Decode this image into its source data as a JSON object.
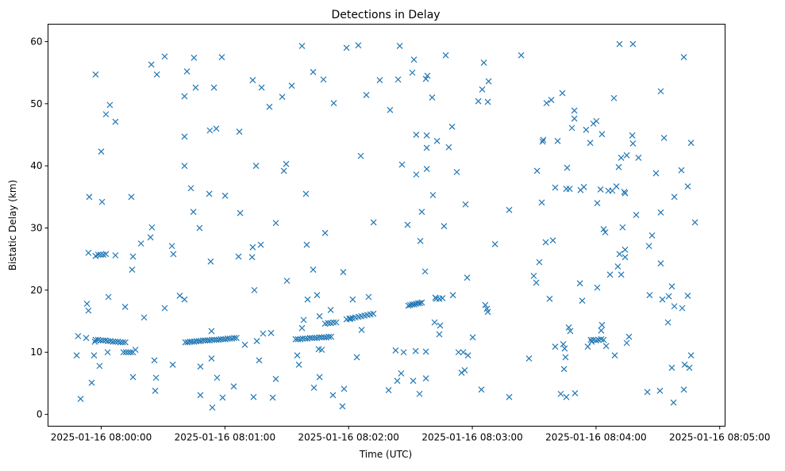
{
  "chart_data": {
    "type": "scatter",
    "title": "Detections in Delay",
    "xlabel": "Time (UTC)",
    "ylabel": "Bistatic Delay (km)",
    "x_units": "seconds since 2025-01-16 08:00:00",
    "xlim": [
      -25.8,
      302.6
    ],
    "ylim": [
      -1.9,
      62.8
    ],
    "x_ticks": [
      {
        "value": 0,
        "label": "2025-01-16 08:00:00"
      },
      {
        "value": 60,
        "label": "2025-01-16 08:01:00"
      },
      {
        "value": 120,
        "label": "2025-01-16 08:02:00"
      },
      {
        "value": 180,
        "label": "2025-01-16 08:03:00"
      },
      {
        "value": 240,
        "label": "2025-01-16 08:04:00"
      },
      {
        "value": 300,
        "label": "2025-01-16 08:05:00"
      }
    ],
    "y_ticks": [
      {
        "value": 0,
        "label": "0"
      },
      {
        "value": 10,
        "label": "10"
      },
      {
        "value": 20,
        "label": "20"
      },
      {
        "value": 30,
        "label": "30"
      },
      {
        "value": 40,
        "label": "40"
      },
      {
        "value": 50,
        "label": "50"
      },
      {
        "value": 60,
        "label": "60"
      }
    ],
    "grid": false,
    "marker": "x",
    "color": "#1f77b4",
    "points": [
      [
        -11.9,
        9.5
      ],
      [
        -10.0,
        2.5
      ],
      [
        -11.2,
        12.6
      ],
      [
        -7.3,
        12.3
      ],
      [
        -6.9,
        17.8
      ],
      [
        -6.2,
        16.7
      ],
      [
        -5.8,
        35
      ],
      [
        -6.2,
        26
      ],
      [
        -4.6,
        5.1
      ],
      [
        -3.5,
        9.5
      ],
      [
        -3.1,
        11.7
      ],
      [
        -2.7,
        54.7
      ],
      [
        -0.8,
        7.8
      ],
      [
        0,
        42.3
      ],
      [
        0.4,
        34.2
      ],
      [
        2.3,
        48.3
      ],
      [
        3.1,
        10
      ],
      [
        3.5,
        18.9
      ],
      [
        4.2,
        49.8
      ],
      [
        6.9,
        47.1
      ],
      [
        6.9,
        25.6
      ],
      [
        -2.7,
        25.5
      ],
      [
        -1.5,
        25.7
      ],
      [
        -0.3,
        25.7
      ],
      [
        1.0,
        25.7
      ],
      [
        2.3,
        25.8
      ],
      [
        -2.7,
        12.0
      ],
      [
        -1.5,
        12.0
      ],
      [
        -0.3,
        11.9
      ],
      [
        0.9,
        11.9
      ],
      [
        2.1,
        11.9
      ],
      [
        3.3,
        11.8
      ],
      [
        4.5,
        11.8
      ],
      [
        5.7,
        11.7
      ],
      [
        6.9,
        11.7
      ],
      [
        8.1,
        11.7
      ],
      [
        9.3,
        11.6
      ],
      [
        10.5,
        11.6
      ],
      [
        11.7,
        11.6
      ],
      [
        10.8,
        10.0
      ],
      [
        12.0,
        10.0
      ],
      [
        13.2,
        10.0
      ],
      [
        14.3,
        10.0
      ],
      [
        15.4,
        10.0
      ],
      [
        11.6,
        17.3
      ],
      [
        14.6,
        35
      ],
      [
        15.4,
        25.4
      ],
      [
        15.0,
        23.3
      ],
      [
        15.4,
        6
      ],
      [
        16.6,
        10.4
      ],
      [
        20.8,
        15.6
      ],
      [
        19.3,
        27.5
      ],
      [
        23.9,
        28.5
      ],
      [
        24.6,
        30.1
      ],
      [
        24.3,
        56.3
      ],
      [
        27.0,
        54.7
      ],
      [
        25.8,
        8.7
      ],
      [
        26.2,
        3.8
      ],
      [
        26.6,
        5.9
      ],
      [
        30.8,
        57.6
      ],
      [
        30.8,
        17.1
      ],
      [
        34.3,
        27.1
      ],
      [
        35.0,
        25.8
      ],
      [
        34.7,
        8
      ],
      [
        38.1,
        19.1
      ],
      [
        40.4,
        18.5
      ],
      [
        40.4,
        40
      ],
      [
        40.4,
        44.7
      ],
      [
        40.4,
        51.2
      ],
      [
        41.6,
        55.2
      ],
      [
        43.5,
        36.4
      ],
      [
        44.7,
        32.6
      ],
      [
        45.0,
        57.4
      ],
      [
        45.8,
        52.6
      ],
      [
        47.7,
        30
      ],
      [
        48.1,
        7.7
      ],
      [
        48.1,
        3.1
      ],
      [
        52.4,
        35.5
      ],
      [
        52.7,
        45.7
      ],
      [
        53.1,
        24.6
      ],
      [
        53.5,
        9
      ],
      [
        53.9,
        1.1
      ],
      [
        54.7,
        52.6
      ],
      [
        55.8,
        46
      ],
      [
        56.2,
        5.9
      ],
      [
        58.5,
        57.5
      ],
      [
        58.9,
        2.7
      ],
      [
        60.1,
        35.2
      ],
      [
        64.3,
        4.5
      ],
      [
        67.0,
        45.5
      ],
      [
        66.6,
        25.4
      ],
      [
        67.4,
        32.4
      ],
      [
        69.7,
        11.2
      ],
      [
        40.8,
        11.6
      ],
      [
        41.9,
        11.6
      ],
      [
        43.0,
        11.7
      ],
      [
        44.0,
        11.7
      ],
      [
        45.1,
        11.7
      ],
      [
        46.2,
        11.8
      ],
      [
        47.3,
        11.8
      ],
      [
        48.3,
        11.8
      ],
      [
        49.4,
        11.9
      ],
      [
        50.5,
        11.9
      ],
      [
        51.6,
        11.9
      ],
      [
        52.6,
        11.9
      ],
      [
        53.7,
        12.0
      ],
      [
        54.8,
        12.0
      ],
      [
        55.9,
        12.0
      ],
      [
        57.0,
        12.0
      ],
      [
        58.0,
        12.1
      ],
      [
        59.1,
        12.1
      ],
      [
        60.2,
        12.1
      ],
      [
        61.3,
        12.2
      ],
      [
        62.3,
        12.2
      ],
      [
        63.4,
        12.2
      ],
      [
        64.5,
        12.3
      ],
      [
        65.6,
        12.3
      ],
      [
        53.5,
        13.4
      ],
      [
        73.5,
        26.9
      ],
      [
        73.5,
        53.8
      ],
      [
        74.3,
        20
      ],
      [
        75.1,
        40
      ],
      [
        73.2,
        25.3
      ],
      [
        73.9,
        2.8
      ],
      [
        75.5,
        11.8
      ],
      [
        76.6,
        8.7
      ],
      [
        77.8,
        52.6
      ],
      [
        77.4,
        27.3
      ],
      [
        78.5,
        13
      ],
      [
        81.6,
        49.5
      ],
      [
        83.2,
        2.7
      ],
      [
        82.4,
        13.1
      ],
      [
        84.7,
        5.7
      ],
      [
        84.7,
        30.8
      ],
      [
        87.8,
        51.1
      ],
      [
        88.6,
        39.2
      ],
      [
        89.7,
        40.3
      ],
      [
        90.1,
        21.5
      ],
      [
        92.4,
        52.9
      ],
      [
        95.1,
        9.5
      ],
      [
        95.9,
        8
      ],
      [
        97.4,
        59.3
      ],
      [
        99.3,
        35.5
      ],
      [
        99.7,
        27.3
      ],
      [
        100.1,
        18.5
      ],
      [
        98.2,
        15.2
      ],
      [
        97.4,
        13.9
      ],
      [
        102.8,
        55.1
      ],
      [
        103.2,
        4.3
      ],
      [
        102.8,
        23.3
      ],
      [
        104.7,
        19.2
      ],
      [
        105.9,
        15.8
      ],
      [
        105.5,
        10.5
      ],
      [
        105.9,
        6
      ],
      [
        107.0,
        10.4
      ],
      [
        107.8,
        53.9
      ],
      [
        108.6,
        29.2
      ],
      [
        111.3,
        16.8
      ],
      [
        112.4,
        3.1
      ],
      [
        112.8,
        50.1
      ],
      [
        117.0,
        1.3
      ],
      [
        117.4,
        22.9
      ],
      [
        117.8,
        4.1
      ],
      [
        119.0,
        59
      ],
      [
        94.3,
        12.1
      ],
      [
        95.4,
        12.1
      ],
      [
        96.6,
        12.1
      ],
      [
        97.7,
        12.2
      ],
      [
        98.9,
        12.2
      ],
      [
        100.0,
        12.2
      ],
      [
        101.2,
        12.3
      ],
      [
        102.3,
        12.3
      ],
      [
        103.5,
        12.3
      ],
      [
        104.6,
        12.3
      ],
      [
        105.8,
        12.4
      ],
      [
        106.9,
        12.4
      ],
      [
        108.1,
        12.4
      ],
      [
        109.2,
        12.4
      ],
      [
        110.4,
        12.5
      ],
      [
        111.5,
        12.5
      ],
      [
        108.6,
        14.6
      ],
      [
        110.0,
        14.7
      ],
      [
        111.3,
        14.7
      ],
      [
        112.7,
        14.8
      ],
      [
        114.0,
        14.8
      ],
      [
        119.0,
        15.3
      ],
      [
        120.4,
        15.4
      ],
      [
        121.9,
        15.5
      ],
      [
        123.3,
        15.6
      ],
      [
        124.8,
        15.7
      ],
      [
        126.2,
        15.8
      ],
      [
        127.7,
        15.9
      ],
      [
        129.1,
        16.0
      ],
      [
        130.6,
        16.1
      ],
      [
        132.0,
        16.2
      ],
      [
        120.9,
        15.4
      ],
      [
        122.0,
        18.5
      ],
      [
        124.0,
        9.2
      ],
      [
        124.7,
        59.4
      ],
      [
        125.9,
        41.6
      ],
      [
        126.3,
        13.6
      ],
      [
        128.6,
        51.4
      ],
      [
        129.7,
        18.9
      ],
      [
        132.1,
        30.9
      ],
      [
        135.1,
        53.8
      ],
      [
        139.4,
        3.9
      ],
      [
        140.1,
        49
      ],
      [
        142.8,
        10.3
      ],
      [
        144.0,
        53.9
      ],
      [
        144.8,
        59.3
      ],
      [
        145.9,
        40.2
      ],
      [
        145.5,
        6.6
      ],
      [
        143.6,
        5.4
      ],
      [
        146.7,
        10
      ],
      [
        148.6,
        30.5
      ],
      [
        150.9,
        55
      ],
      [
        151.7,
        57.1
      ],
      [
        151.3,
        5.4
      ],
      [
        152.8,
        45
      ],
      [
        152.8,
        38.6
      ],
      [
        152.5,
        10.2
      ],
      [
        154.8,
        27.9
      ],
      [
        154.4,
        3.3
      ],
      [
        155.5,
        32.6
      ],
      [
        157.9,
        44.9
      ],
      [
        157.9,
        42.9
      ],
      [
        157.5,
        54
      ],
      [
        158.2,
        54.5
      ],
      [
        157.9,
        39.5
      ],
      [
        157.1,
        23
      ],
      [
        157.5,
        5.8
      ],
      [
        157.5,
        10.1
      ],
      [
        160.9,
        35.3
      ],
      [
        160.5,
        51
      ],
      [
        161.7,
        14.8
      ],
      [
        162.1,
        18.8
      ],
      [
        164.0,
        12.9
      ],
      [
        164.4,
        14.3
      ],
      [
        162.9,
        44
      ],
      [
        167.1,
        57.8
      ],
      [
        166.3,
        30.3
      ],
      [
        168.6,
        43
      ],
      [
        170.2,
        46.3
      ],
      [
        170.6,
        19.2
      ],
      [
        172.5,
        39
      ],
      [
        173.3,
        10
      ],
      [
        174.8,
        6.7
      ],
      [
        175.6,
        10
      ],
      [
        176.7,
        33.8
      ],
      [
        176.3,
        7.1
      ],
      [
        177.5,
        22
      ],
      [
        177.9,
        9.5
      ],
      [
        180.2,
        12.4
      ],
      [
        149.0,
        17.5
      ],
      [
        149.9,
        17.6
      ],
      [
        150.9,
        17.7
      ],
      [
        151.8,
        17.7
      ],
      [
        152.7,
        17.8
      ],
      [
        153.7,
        17.9
      ],
      [
        154.6,
        17.9
      ],
      [
        155.5,
        18.0
      ],
      [
        162.5,
        18.6
      ],
      [
        164.0,
        18.6
      ],
      [
        165.5,
        18.7
      ],
      [
        182.9,
        50.4
      ],
      [
        184.4,
        4
      ],
      [
        184.8,
        52.3
      ],
      [
        185.6,
        56.6
      ],
      [
        186.3,
        17.6
      ],
      [
        187.1,
        17
      ],
      [
        187.5,
        16.5
      ],
      [
        187.9,
        53.6
      ],
      [
        187.5,
        50.3
      ],
      [
        191.0,
        27.4
      ],
      [
        197.9,
        2.8
      ],
      [
        197.9,
        32.9
      ],
      [
        203.7,
        57.8
      ],
      [
        207.5,
        9
      ],
      [
        209.8,
        22.3
      ],
      [
        211.0,
        21.2
      ],
      [
        211.4,
        39.2
      ],
      [
        212.5,
        24.5
      ],
      [
        213.7,
        34.1
      ],
      [
        214.1,
        43.9
      ],
      [
        214.4,
        44.2
      ],
      [
        215.6,
        27.7
      ],
      [
        216.0,
        50.1
      ],
      [
        217.5,
        18.6
      ],
      [
        218.3,
        50.6
      ],
      [
        219.1,
        28
      ],
      [
        220.2,
        10.9
      ],
      [
        220.2,
        36.5
      ],
      [
        221.4,
        44
      ],
      [
        222.9,
        3.3
      ],
      [
        223.7,
        51.7
      ],
      [
        224.1,
        11.3
      ],
      [
        224.5,
        7.3
      ],
      [
        224.8,
        10.6
      ],
      [
        225.2,
        9.2
      ],
      [
        225.6,
        36.3
      ],
      [
        226.0,
        39.7
      ],
      [
        225.6,
        2.8
      ],
      [
        226.8,
        14
      ],
      [
        227.2,
        36.3
      ],
      [
        227.5,
        13.4
      ],
      [
        228.3,
        46.1
      ],
      [
        229.5,
        48.9
      ],
      [
        229.5,
        47.6
      ],
      [
        229.8,
        3.4
      ],
      [
        232.2,
        21.1
      ],
      [
        232.5,
        36.1
      ],
      [
        233.3,
        18.3
      ],
      [
        234.1,
        36.6
      ],
      [
        235.2,
        45.8
      ],
      [
        236.0,
        10.9
      ],
      [
        237.2,
        43.7
      ],
      [
        237.9,
        11.7
      ],
      [
        238.7,
        46.8
      ],
      [
        240.2,
        47.2
      ],
      [
        240.6,
        34
      ],
      [
        240.6,
        20.4
      ],
      [
        242.2,
        36.2
      ],
      [
        242.9,
        45.1
      ],
      [
        242.9,
        14.4
      ],
      [
        243.7,
        29.8
      ],
      [
        244.5,
        29.3
      ],
      [
        244.9,
        11
      ],
      [
        246.0,
        36
      ],
      [
        246.8,
        22.5
      ],
      [
        247.9,
        36
      ],
      [
        248.7,
        50.9
      ],
      [
        249.1,
        9.5
      ],
      [
        249.9,
        36.7
      ],
      [
        250.6,
        23.8
      ],
      [
        251.0,
        39.8
      ],
      [
        251.4,
        25.8
      ],
      [
        251.4,
        59.6
      ],
      [
        252.2,
        41.3
      ],
      [
        252.2,
        22.5
      ],
      [
        252.9,
        30.1
      ],
      [
        253.7,
        35.8
      ],
      [
        254.1,
        35.6
      ],
      [
        254.1,
        26.5
      ],
      [
        254.1,
        25.3
      ],
      [
        254.9,
        41.7
      ],
      [
        254.9,
        11.5
      ],
      [
        256.0,
        12.5
      ],
      [
        257.6,
        44.9
      ],
      [
        257.9,
        43.6
      ],
      [
        259.5,
        32.1
      ],
      [
        260.6,
        41.3
      ],
      [
        257.9,
        59.6
      ],
      [
        237.5,
        12.0
      ],
      [
        238.7,
        12.0
      ],
      [
        240.0,
        11.9
      ],
      [
        241.2,
        12.0
      ],
      [
        242.5,
        12.1
      ],
      [
        243.7,
        12.0
      ],
      [
        242.5,
        13.5
      ],
      [
        264.9,
        3.6
      ],
      [
        266.0,
        19.2
      ],
      [
        265.7,
        27.1
      ],
      [
        267.2,
        28.8
      ],
      [
        269.1,
        38.8
      ],
      [
        271.0,
        3.8
      ],
      [
        271.4,
        52
      ],
      [
        271.4,
        32.5
      ],
      [
        271.4,
        24.3
      ],
      [
        272.2,
        18.5
      ],
      [
        273.0,
        44.5
      ],
      [
        274.9,
        14.8
      ],
      [
        275.3,
        19
      ],
      [
        276.8,
        7.5
      ],
      [
        276.8,
        20.6
      ],
      [
        277.6,
        1.9
      ],
      [
        278.0,
        17.4
      ],
      [
        278.0,
        35
      ],
      [
        281.4,
        39.3
      ],
      [
        281.8,
        17.1
      ],
      [
        282.6,
        4
      ],
      [
        282.6,
        57.5
      ],
      [
        283.0,
        8
      ],
      [
        284.5,
        19.1
      ],
      [
        284.5,
        36.7
      ],
      [
        285.3,
        7.5
      ],
      [
        286.1,
        9.5
      ],
      [
        286.1,
        43.7
      ],
      [
        288.0,
        30.9
      ]
    ]
  }
}
